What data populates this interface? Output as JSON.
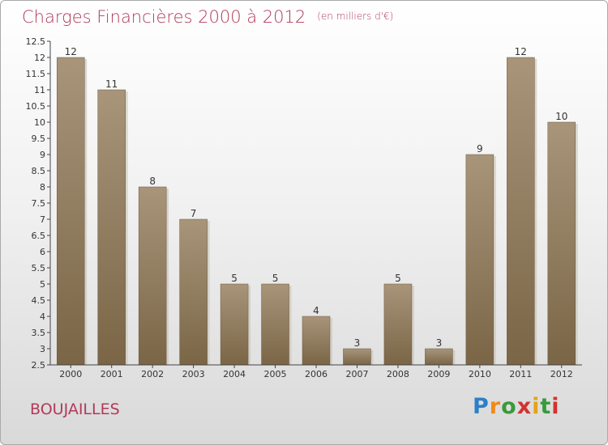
{
  "header": {
    "title": "Charges Financières 2000 à 2012",
    "unit": "(en milliers d'€)"
  },
  "footer": {
    "commune": "BOUJAILLES",
    "brand": [
      "P",
      "r",
      "o",
      "x",
      "i",
      "t",
      "i"
    ]
  },
  "colors": {
    "title": "#b23a5a",
    "bar_top": "#a8957a",
    "bar_bottom": "#7a6546",
    "axis": "#444444"
  },
  "chart_data": {
    "type": "bar",
    "categories": [
      "2000",
      "2001",
      "2002",
      "2003",
      "2004",
      "2005",
      "2006",
      "2007",
      "2008",
      "2009",
      "2010",
      "2011",
      "2012"
    ],
    "values": [
      12,
      11,
      8,
      7,
      5,
      5,
      4,
      3,
      5,
      3,
      9,
      12,
      10
    ],
    "ylim": [
      2.5,
      12.5
    ],
    "yticks": [
      "2.5",
      "3",
      "3.5",
      "4",
      "4.5",
      "5",
      "5.5",
      "6",
      "6.5",
      "7",
      "7.5",
      "8",
      "8.5",
      "9",
      "9.5",
      "10",
      "10.5",
      "11",
      "11.5",
      "12",
      "12.5"
    ],
    "grid": false
  }
}
